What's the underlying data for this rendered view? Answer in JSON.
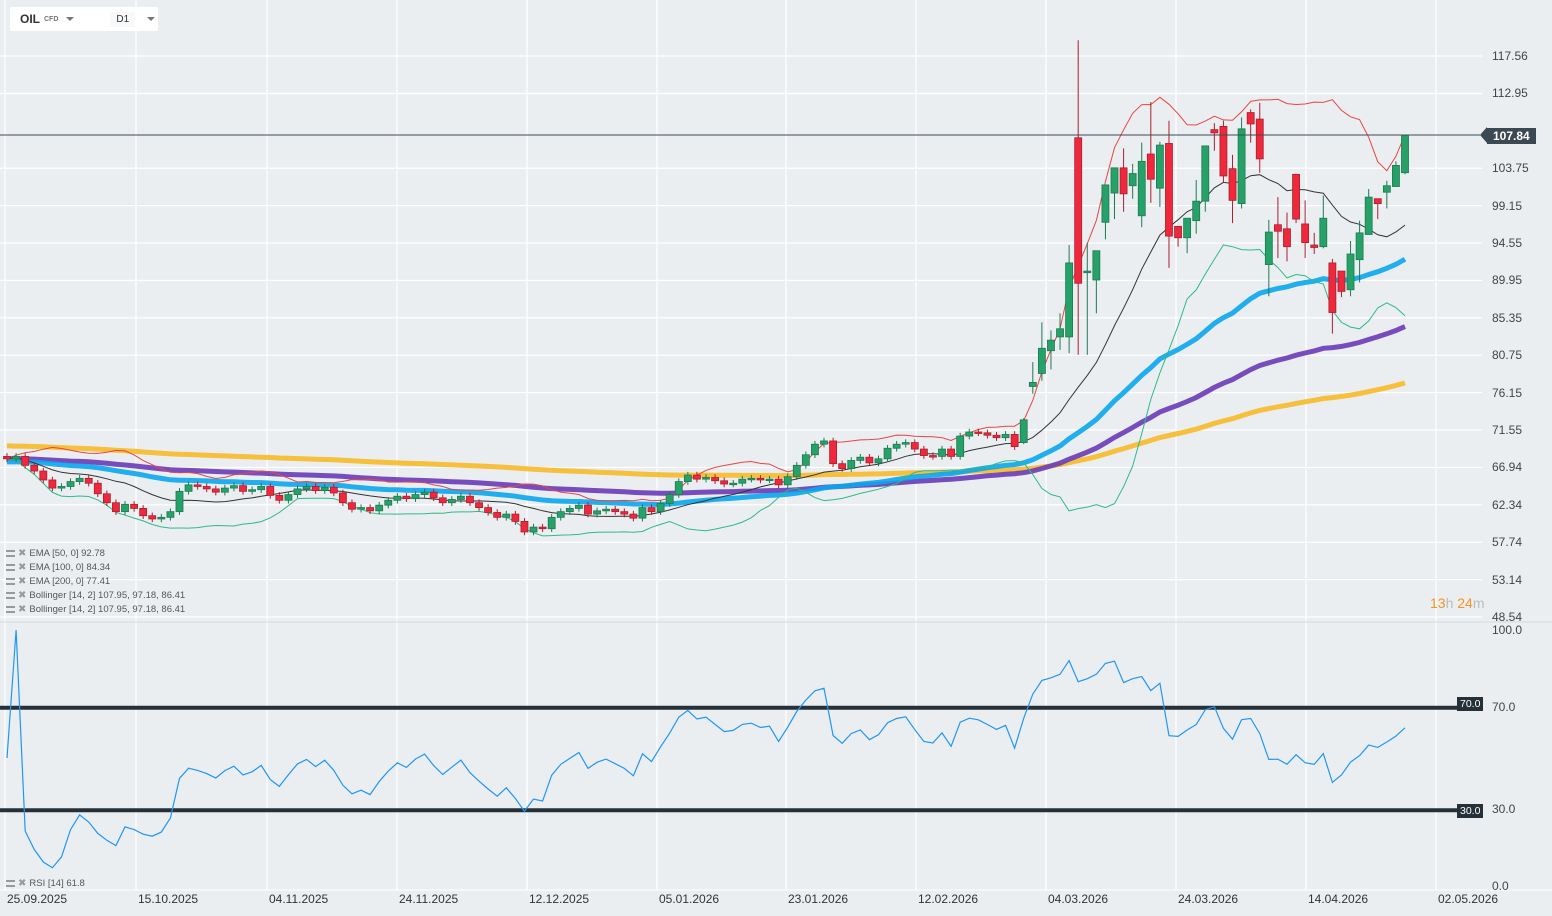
{
  "header": {
    "symbol": "OIL",
    "instrument_type": "CFD",
    "timeframe": "D1"
  },
  "legend": [
    "EMA [50, 0] 92.78",
    "EMA [100, 0] 84.34",
    "EMA [200, 0] 77.41",
    "Bollinger [14, 2] 107.95, 97.18, 86.41",
    "Bollinger [14, 2] 107.95, 97.18, 86.41"
  ],
  "rsi_legend": "RSI [14] 61.8",
  "current_price": "107.84",
  "countdown": {
    "hours": "13",
    "h": "h",
    "minutes": "24",
    "m": "m"
  },
  "colors": {
    "up": "#26a269",
    "down": "#f0283c",
    "ema50": "#0aa6ee",
    "ema100": "#6a3bb8",
    "ema200": "#f7b928",
    "bb_upper": "#e84545",
    "bb_mid": "#333333",
    "bb_lower": "#2dbb85",
    "rsi": "#2196f3"
  },
  "chart_data": [
    {
      "type": "candlestick",
      "title": "OIL CFD D1",
      "y_ticks": [
        "117.56",
        "112.95",
        "103.75",
        "99.15",
        "94.55",
        "89.95",
        "85.35",
        "80.75",
        "76.15",
        "71.55",
        "66.94",
        "62.34",
        "57.74",
        "53.14",
        "48.54"
      ],
      "ylim": [
        48.54,
        117.56
      ],
      "x_ticks": [
        "25.09.2025",
        "15.10.2025",
        "04.11.2025",
        "24.11.2025",
        "12.12.2025",
        "05.01.2026",
        "23.01.2026",
        "12.02.2026",
        "04.03.2026",
        "24.03.2026",
        "14.04.2026",
        "02.05.2026"
      ],
      "early_closes": [
        68.0,
        68.3,
        67.2,
        66.5,
        65.4,
        64.4,
        64.6,
        65.2,
        65.6,
        65.0,
        63.7,
        62.6,
        61.5,
        62.4,
        61.9,
        61.0,
        60.6,
        60.8,
        61.5,
        64.0,
        64.8,
        64.6,
        64.3,
        63.9,
        64.4,
        64.7,
        64.0,
        64.2,
        64.6,
        63.5,
        62.9,
        63.6,
        64.3,
        64.6,
        64.1,
        64.5,
        63.8,
        62.6,
        61.8,
        62.0,
        61.6,
        62.3,
        62.9,
        63.4,
        63.1,
        63.6,
        63.9,
        63.2,
        62.6,
        63.0,
        63.4,
        62.6,
        62.0,
        61.4,
        60.8,
        61.2,
        60.3,
        59.0,
        59.6,
        59.4,
        60.8,
        61.5,
        61.9,
        62.3,
        61.2,
        61.6,
        61.8,
        61.5,
        61.2,
        60.7,
        62.0,
        61.5,
        62.5,
        63.6,
        65.2,
        66.0,
        65.5,
        65.7,
        65.3,
        64.9,
        65.0,
        65.5,
        65.6,
        65.4,
        65.5,
        64.8,
        65.8,
        67.2,
        68.5,
        69.8,
        70.2,
        67.4,
        66.8,
        67.8,
        68.2,
        67.5,
        68.0,
        69.3,
        69.8,
        70.0,
        69.2,
        68.4,
        68.3,
        69.2,
        68.3,
        70.8,
        71.3,
        71.2,
        70.9,
        70.6,
        71.0,
        69.5
      ],
      "late_ohlc": [
        [
          70.0,
          73.0,
          69.8,
          72.8
        ],
        [
          76.9,
          79.9,
          76.0,
          77.4
        ],
        [
          78.5,
          84.8,
          77.6,
          81.6
        ],
        [
          81.3,
          83.8,
          79.0,
          82.6
        ],
        [
          83.0,
          85.9,
          81.4,
          84.0
        ],
        [
          83.0,
          94.3,
          81.0,
          92.1
        ],
        [
          107.5,
          119.5,
          80.8,
          89.6
        ],
        [
          90.9,
          94.6,
          80.8,
          91.1
        ],
        [
          90.0,
          93.6,
          85.9,
          93.6
        ],
        [
          97.1,
          101.7,
          95.0,
          101.7
        ],
        [
          100.7,
          103.8,
          97.5,
          103.8
        ],
        [
          103.8,
          106.2,
          98.4,
          100.6
        ],
        [
          101.6,
          104.3,
          100.0,
          103.1
        ],
        [
          97.9,
          106.9,
          96.5,
          104.6
        ],
        [
          105.5,
          111.9,
          99.5,
          102.4
        ],
        [
          101.3,
          107.0,
          99.0,
          106.6
        ],
        [
          106.8,
          109.6,
          91.5,
          95.4
        ],
        [
          96.6,
          96.6,
          94.1,
          95.2
        ],
        [
          95.2,
          97.6,
          93.3,
          97.6
        ],
        [
          97.3,
          102.3,
          95.7,
          99.7
        ],
        [
          99.7,
          106.5,
          98.4,
          106.5
        ],
        [
          108.5,
          109.3,
          105.9,
          108.1
        ],
        [
          108.9,
          109.6,
          102.0,
          102.8
        ],
        [
          103.7,
          105.4,
          97.0,
          99.8
        ],
        [
          99.4,
          110.0,
          98.8,
          108.6
        ],
        [
          110.6,
          111.0,
          106.9,
          109.2
        ],
        [
          109.8,
          111.8,
          103.2,
          104.9
        ],
        [
          91.9,
          97.4,
          88.0,
          95.9
        ],
        [
          96.8,
          100.2,
          92.7,
          96.0
        ],
        [
          96.3,
          98.3,
          92.3,
          94.1
        ],
        [
          103.0,
          103.0,
          97.0,
          97.5
        ],
        [
          96.9,
          99.8,
          92.7,
          94.6
        ],
        [
          94.3,
          95.8,
          93.2,
          94.0
        ],
        [
          94.1,
          100.4,
          93.9,
          97.6
        ],
        [
          92.1,
          92.6,
          83.4,
          86.0
        ],
        [
          91.1,
          91.1,
          87.9,
          88.6
        ],
        [
          88.8,
          94.8,
          88.0,
          93.2
        ],
        [
          92.5,
          97.3,
          89.7,
          95.8
        ],
        [
          95.6,
          101.2,
          95.6,
          100.2
        ],
        [
          100.0,
          100.0,
          97.5,
          99.4
        ],
        [
          100.8,
          102.2,
          98.8,
          101.6
        ],
        [
          101.5,
          104.6,
          101.5,
          104.1
        ],
        [
          103.2,
          107.84,
          103.0,
          107.84
        ]
      ],
      "indicators": {
        "ema_periods": [
          50,
          100,
          200
        ],
        "ema_seeds": [
          67.6,
          68.0,
          69.6
        ],
        "bollinger": {
          "period": 14,
          "mult": 2
        }
      },
      "last_values": {
        "ema50": 92.78,
        "ema100": 84.34,
        "ema200": 77.41,
        "bb_upper": 107.95,
        "bb_mid": 97.18,
        "bb_lower": 86.41
      }
    },
    {
      "type": "line",
      "title": "RSI [14]",
      "ylim": [
        0,
        100
      ],
      "y_ticks": [
        "100.0",
        "70.0",
        "30.0",
        "0.0"
      ],
      "levels": [
        "70.0",
        "30.0"
      ],
      "period": 14,
      "last_value": 61.8
    }
  ]
}
